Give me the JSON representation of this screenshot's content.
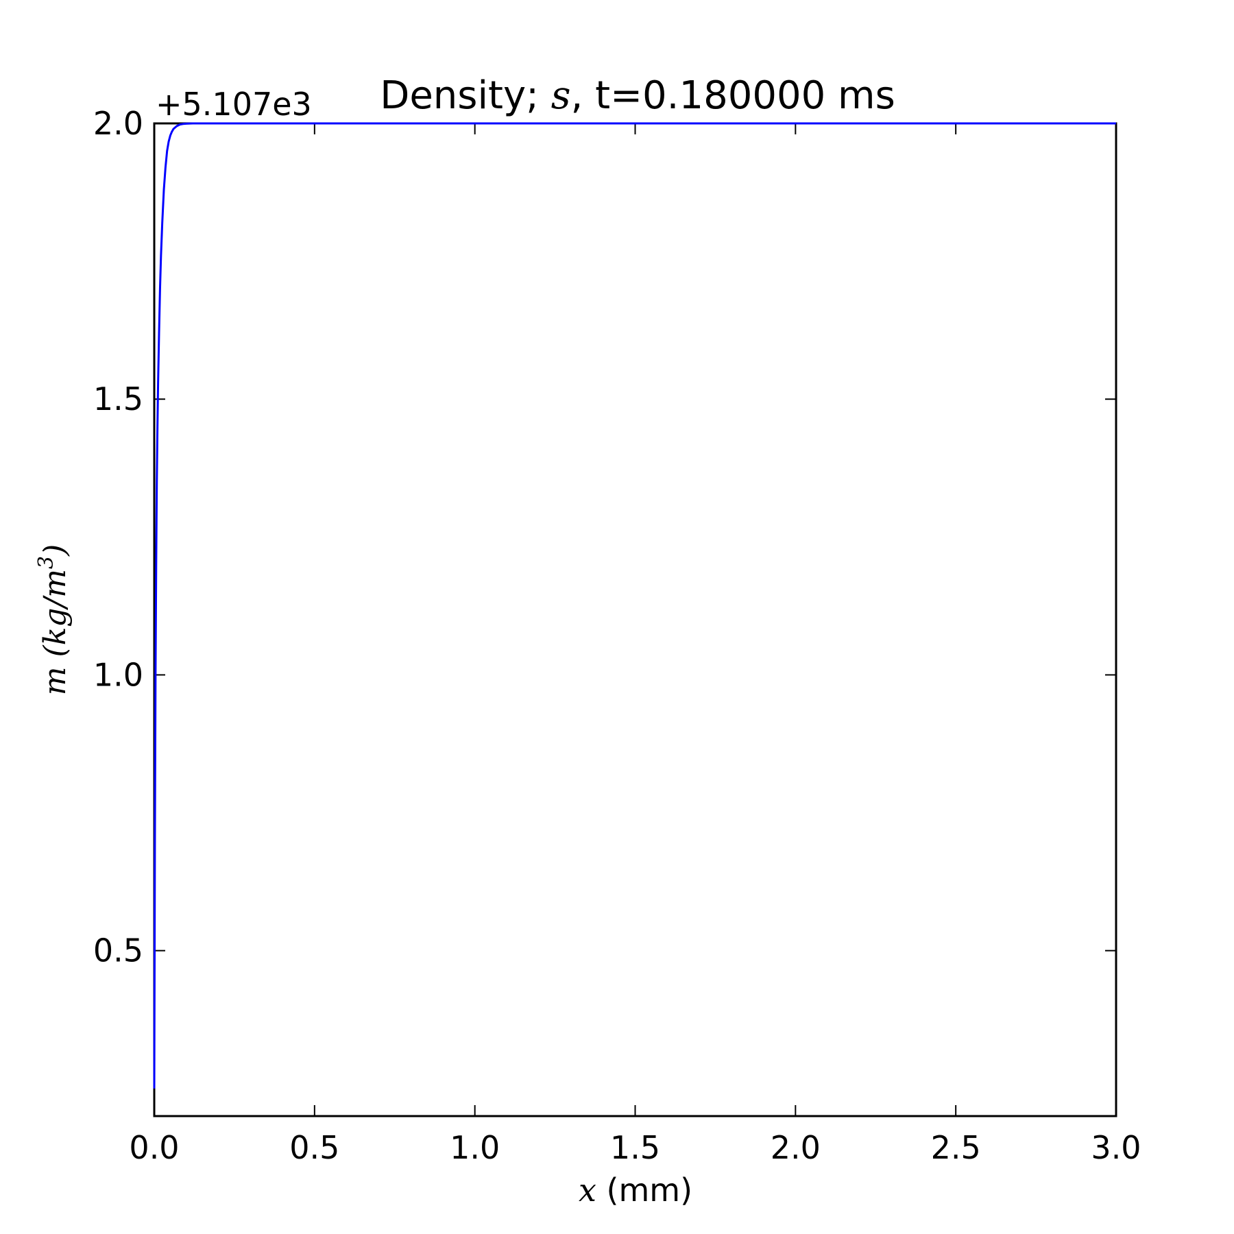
{
  "chart_data": {
    "type": "line",
    "title_parts": {
      "prefix": "Density; ",
      "math": "s",
      "suffix": ", t=0.180000 ms"
    },
    "offset_text": "+5.107e3",
    "xlabel_math": "x",
    "xlabel_text": " (mm)",
    "ylabel_math": "m (kg/m",
    "ylabel_sup": "3",
    "ylabel_close": ")",
    "xlim": [
      0.0,
      3.0
    ],
    "ylim": [
      0.2,
      2.0
    ],
    "x_ticks": [
      "0.0",
      "0.5",
      "1.0",
      "1.5",
      "2.0",
      "2.5",
      "3.0"
    ],
    "y_ticks": [
      "0.5",
      "1.0",
      "1.5",
      "2.0"
    ],
    "grid": false,
    "series": [
      {
        "color": "#0000ff",
        "x": [
          0.0,
          0.002,
          0.004,
          0.006,
          0.008,
          0.01,
          0.012,
          0.015,
          0.018,
          0.021,
          0.025,
          0.03,
          0.035,
          0.04,
          0.045,
          0.05,
          0.055,
          0.06,
          0.07,
          0.08,
          0.09,
          0.1,
          0.12,
          0.15,
          0.2,
          0.3,
          0.5,
          1.0,
          1.5,
          2.0,
          2.5,
          3.0
        ],
        "y": [
          0.25,
          0.7,
          1.0,
          1.2,
          1.35,
          1.45,
          1.53,
          1.62,
          1.7,
          1.76,
          1.82,
          1.88,
          1.92,
          1.95,
          1.967,
          1.978,
          1.985,
          1.99,
          1.995,
          1.998,
          1.999,
          1.9995,
          2.0,
          2.0,
          2.0,
          2.0,
          2.0,
          2.0,
          2.0,
          2.0,
          2.0,
          2.0
        ]
      }
    ]
  }
}
